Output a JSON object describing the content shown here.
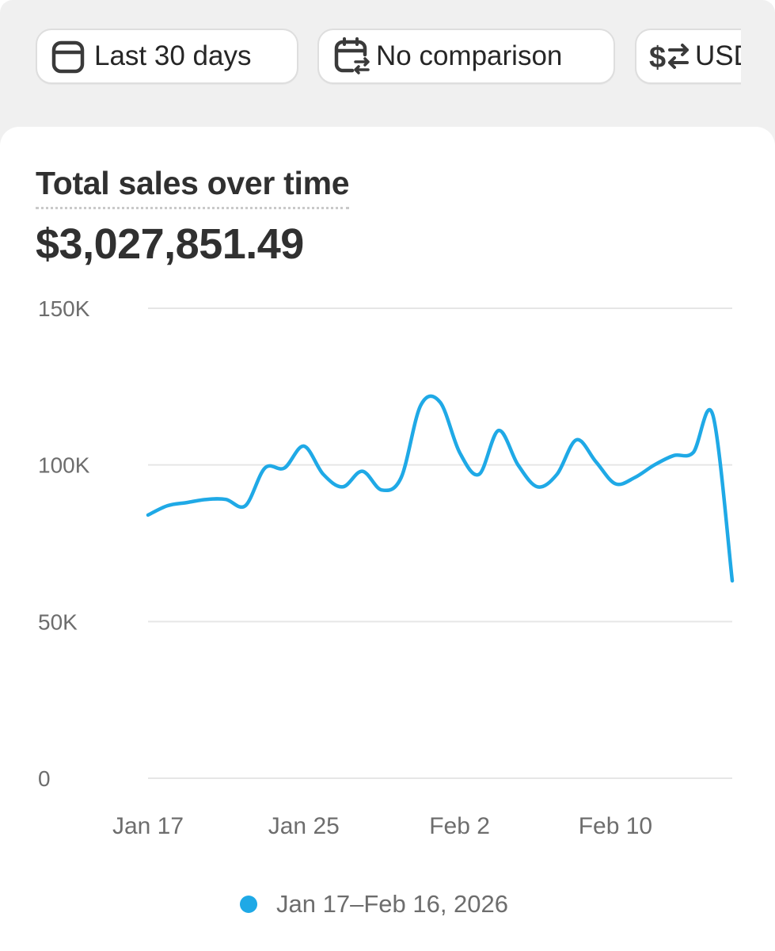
{
  "filters": {
    "date_range": "Last 30 days",
    "comparison": "No comparison",
    "currency": "USD"
  },
  "card": {
    "title": "Total sales over time",
    "total": "$3,027,851.49"
  },
  "colors": {
    "line": "#1fa9e6",
    "grid": "#e6e6e6",
    "axis_text": "#6d6d6d"
  },
  "chart_data": {
    "type": "line",
    "ylim": [
      0,
      150000
    ],
    "y_ticks": [
      0,
      50000,
      100000,
      150000
    ],
    "y_tick_labels": [
      "0",
      "50K",
      "100K",
      "150K"
    ],
    "x_tick_labels": [
      "Jan 17",
      "Jan 25",
      "Feb 2",
      "Feb 10"
    ],
    "x_tick_indices": [
      0,
      8,
      16,
      24
    ],
    "grid": true,
    "legend_position": "bottom",
    "series": [
      {
        "name": "Jan 17–Feb 16, 2026",
        "x": [
          "Jan 17",
          "Jan 18",
          "Jan 19",
          "Jan 20",
          "Jan 21",
          "Jan 22",
          "Jan 23",
          "Jan 24",
          "Jan 25",
          "Jan 26",
          "Jan 27",
          "Jan 28",
          "Jan 29",
          "Jan 30",
          "Jan 31",
          "Feb 1",
          "Feb 2",
          "Feb 3",
          "Feb 4",
          "Feb 5",
          "Feb 6",
          "Feb 7",
          "Feb 8",
          "Feb 9",
          "Feb 10",
          "Feb 11",
          "Feb 12",
          "Feb 13",
          "Feb 14",
          "Feb 15",
          "Feb 16"
        ],
        "values": [
          84000,
          87000,
          88000,
          89000,
          89000,
          87000,
          99000,
          99000,
          106000,
          97000,
          93000,
          98000,
          92000,
          96000,
          119000,
          120000,
          104000,
          97000,
          111000,
          100000,
          93000,
          97000,
          108000,
          101000,
          94000,
          96000,
          100000,
          103000,
          104000,
          116000,
          63000
        ]
      }
    ]
  }
}
